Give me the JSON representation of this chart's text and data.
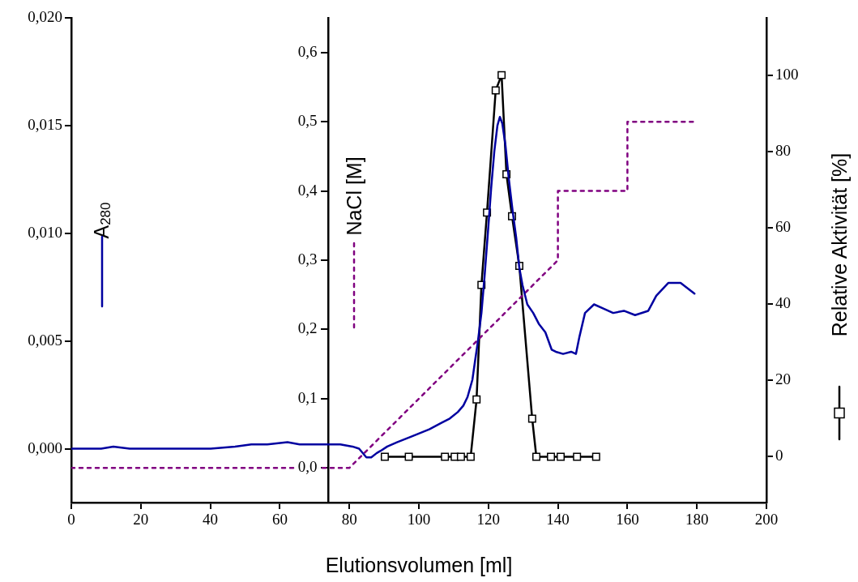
{
  "chart_data": {
    "type": "line",
    "xlabel": "Elutionsvolumen [ml]",
    "ylabel": "A$_{280}$",
    "y2label": "NaCl [M]",
    "y3label": "Relative Aktivität [%]",
    "xlim": [
      0,
      200
    ],
    "xticks": [
      0,
      20,
      40,
      60,
      80,
      100,
      120,
      140,
      160,
      180,
      200
    ],
    "ylim": [
      -0.0025,
      0.02
    ],
    "yticks": [
      {
        "value": 0,
        "label": "0,000"
      },
      {
        "value": 0.005,
        "label": "0,005"
      },
      {
        "value": 0.01,
        "label": "0,010"
      },
      {
        "value": 0.015,
        "label": "0,015"
      },
      {
        "value": 0.02,
        "label": "0,020"
      }
    ],
    "y2lim": [
      -0.05,
      0.65
    ],
    "y2ticks": [
      {
        "value": 0,
        "label": "0,0"
      },
      {
        "value": 0.1,
        "label": "0,1"
      },
      {
        "value": 0.2,
        "label": "0,2"
      },
      {
        "value": 0.3,
        "label": "0,3"
      },
      {
        "value": 0.4,
        "label": "0,4"
      },
      {
        "value": 0.5,
        "label": "0,5"
      },
      {
        "value": 0.6,
        "label": "0,6"
      }
    ],
    "y3lim": [
      -12,
      115
    ],
    "y3ticks": [
      0,
      20,
      40,
      60,
      80,
      100
    ],
    "grid": false,
    "legend": false,
    "series": [
      {
        "color": "#0000a0",
        "marker": "none",
        "line_style": "solid",
        "x": [
          0,
          5.1,
          8.6,
          12.1,
          16.8,
          22.6,
          26.1,
          29.6,
          35.4,
          40.1,
          47.1,
          51.8,
          56.4,
          62.2,
          65.7,
          71.6,
          73.9,
          77.4,
          80.9,
          82.8,
          84.9,
          86.3,
          87.9,
          89.0,
          90.9,
          93.7,
          98.4,
          103.0,
          106.5,
          108.9,
          111.2,
          112.8,
          114.0,
          114.7,
          115.4,
          116.1,
          117.0,
          118.0,
          118.9,
          119.8,
          120.8,
          121.7,
          122.6,
          123.3,
          124.0,
          124.9,
          125.9,
          127.0,
          128.0,
          128.9,
          129.8,
          131.2,
          132.9,
          134.5,
          136.4,
          138.2,
          139.4,
          141.5,
          143.8,
          145.2,
          146.2,
          147.8,
          150.4,
          153.2,
          155.9,
          159.0,
          162.2,
          166.0,
          168.3,
          171.8,
          175.3,
          179.3
        ],
        "values": [
          0,
          0,
          0,
          0.0001,
          0,
          0,
          0,
          0,
          0,
          0,
          0.0001,
          0.0002,
          0.0002,
          0.0003,
          0.0002,
          0.0002,
          0.0002,
          0.0002,
          0.0001,
          0,
          -0.0004,
          -0.0004,
          -0.0002,
          -0.0001,
          0.0001,
          0.0003,
          0.0006,
          0.0009,
          0.0012,
          0.0014,
          0.0017,
          0.002,
          0.0024,
          0.0028,
          0.0032,
          0.004,
          0.005,
          0.0063,
          0.008,
          0.0099,
          0.0121,
          0.0138,
          0.015,
          0.0154,
          0.0151,
          0.0141,
          0.0125,
          0.011,
          0.0098,
          0.0084,
          0.0076,
          0.0067,
          0.0063,
          0.0058,
          0.0054,
          0.0046,
          0.0045,
          0.0044,
          0.0045,
          0.0044,
          0.0052,
          0.0063,
          0.0067,
          0.0065,
          0.0063,
          0.0064,
          0.0062,
          0.0064,
          0.0071,
          0.0077,
          0.0077,
          0.0072
        ]
      },
      {
        "color": "#800080",
        "marker": "none",
        "line_style": "dotted",
        "axis": "y2",
        "x": [
          0,
          80,
          140,
          140,
          160,
          160,
          180
        ],
        "values": [
          0,
          0,
          0.3,
          0.4,
          0.4,
          0.5,
          0.5
        ]
      },
      {
        "color": "#000000",
        "marker": "square",
        "line_style": "solid",
        "axis": "y3",
        "x": [
          90.2,
          97.1,
          107.5,
          110.3,
          112.1,
          114.9,
          116.6,
          118.0,
          119.6,
          122.1,
          123.8,
          125.2,
          126.8,
          128.9,
          132.6,
          133.8,
          138.0,
          140.8,
          145.5,
          151.0
        ],
        "values": [
          0,
          0,
          0,
          0,
          0,
          0,
          15,
          45,
          64,
          96,
          100,
          74,
          63,
          50,
          10,
          0,
          0,
          0,
          0,
          0
        ]
      }
    ]
  }
}
